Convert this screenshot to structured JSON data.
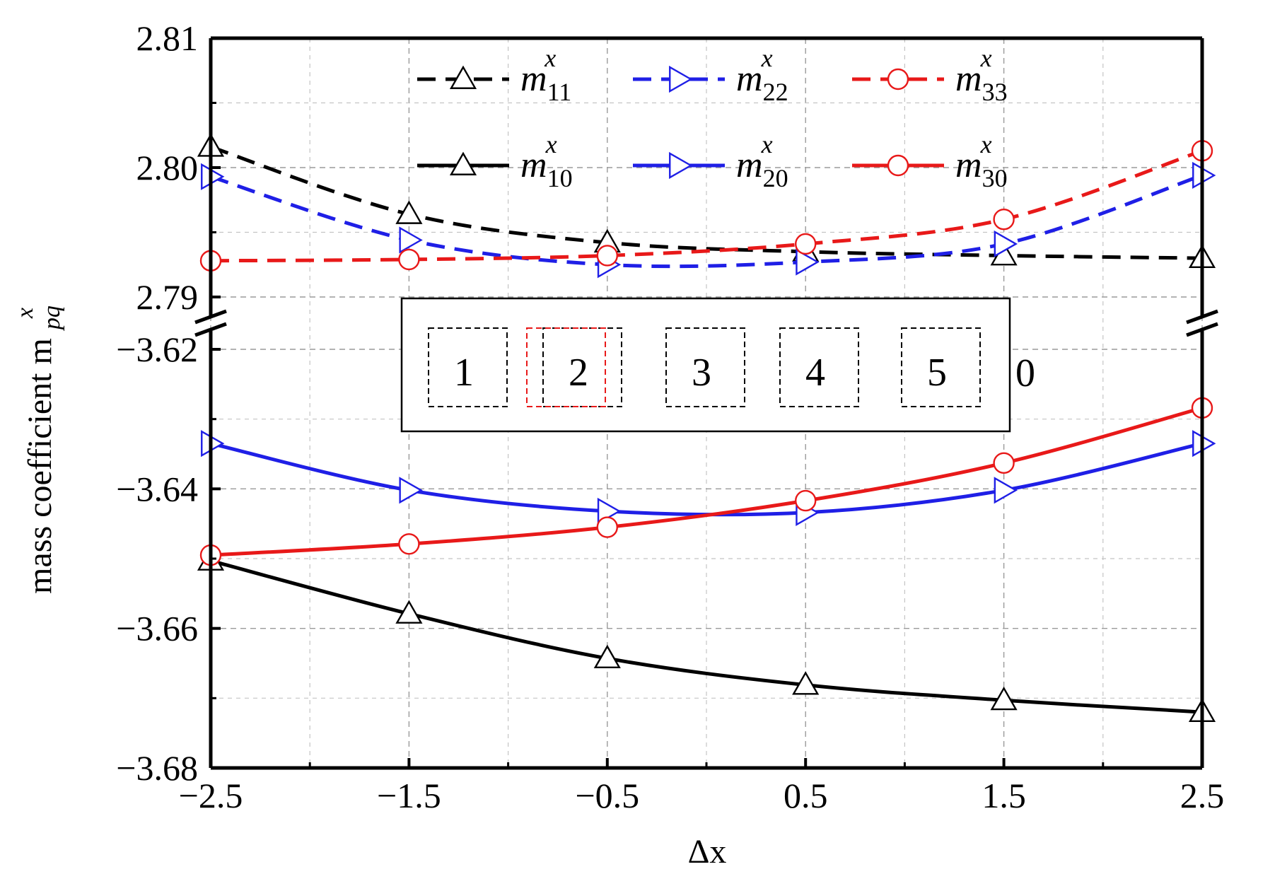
{
  "chart_data": {
    "type": "line",
    "title": "",
    "xlabel": "Δx",
    "ylabel": "mass coefficient m",
    "ylabel_sub": "pq",
    "ylabel_sup": "x",
    "x": [
      -2.5,
      -1.5,
      -0.5,
      0.5,
      1.5,
      2.5
    ],
    "x_ticks": [
      "−2.5",
      "−1.5",
      "−0.5",
      "0.5",
      "1.5",
      "2.5"
    ],
    "xlim": [
      -2.5,
      2.5
    ],
    "broken_y_axis": true,
    "upper_panel": {
      "ylim": [
        2.79,
        2.81
      ],
      "y_ticks": [
        "2.81",
        "2.80",
        "2.79"
      ],
      "series": [
        {
          "name": "m",
          "sub": "11",
          "sup": "x",
          "style": "dashed",
          "marker": "triangle-up",
          "color": "#000000",
          "values": [
            2.8016,
            2.7964,
            2.7942,
            2.7935,
            2.7932,
            2.793
          ]
        },
        {
          "name": "m",
          "sub": "22",
          "sup": "x",
          "style": "dashed",
          "marker": "triangle-right",
          "color": "#1f1fe6",
          "values": [
            2.7993,
            2.7944,
            2.7925,
            2.7927,
            2.7941,
            2.7994
          ]
        },
        {
          "name": "m",
          "sub": "33",
          "sup": "x",
          "style": "dashed",
          "marker": "circle",
          "color": "#e81919",
          "values": [
            2.7928,
            2.7929,
            2.7932,
            2.7941,
            2.796,
            2.8013
          ]
        }
      ]
    },
    "lower_panel": {
      "ylim": [
        -3.68,
        -3.62
      ],
      "y_ticks": [
        "−3.62",
        "−3.64",
        "−3.66",
        "−3.68"
      ],
      "series": [
        {
          "name": "m",
          "sub": "10",
          "sup": "x",
          "style": "solid",
          "marker": "triangle-up",
          "color": "#000000",
          "values": [
            -3.6503,
            -3.6579,
            -3.6643,
            -3.6681,
            -3.6703,
            -3.672
          ]
        },
        {
          "name": "m",
          "sub": "20",
          "sup": "x",
          "style": "solid",
          "marker": "triangle-right",
          "color": "#1f1fe6",
          "values": [
            -3.6335,
            -3.6402,
            -3.6432,
            -3.6434,
            -3.6402,
            -3.6335
          ]
        },
        {
          "name": "m",
          "sub": "30",
          "sup": "x",
          "style": "solid",
          "marker": "circle",
          "color": "#e81919",
          "values": [
            -3.6495,
            -3.6479,
            -3.6455,
            -3.6417,
            -3.6363,
            -3.6284
          ]
        }
      ]
    },
    "grid": true,
    "legend_position": "top",
    "inset": {
      "boxes": [
        "1",
        "2",
        "3",
        "4",
        "5"
      ],
      "trailing_label": "0"
    }
  }
}
